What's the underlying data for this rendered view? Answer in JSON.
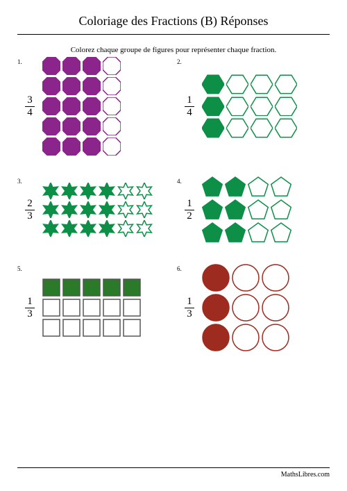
{
  "title": "Coloriage des Fractions (B) Réponses",
  "subtitle": "Colorez chaque groupe de figures pour représenter chaque fraction.",
  "footer_left": "",
  "footer_right": "MathsLibres.com",
  "problems": [
    {
      "index": "1.",
      "numerator": "3",
      "denominator": "4",
      "shape": "octagon",
      "rows": 5,
      "cols": 4,
      "fill_cols": 3,
      "size": 26,
      "fill_color": "#8b258b",
      "stroke_color": "#8b258b"
    },
    {
      "index": "2.",
      "numerator": "1",
      "denominator": "4",
      "shape": "hexagon",
      "rows": 3,
      "cols": 4,
      "fill_cols": 1,
      "size": 32,
      "fill_color": "#0d8f47",
      "stroke_color": "#0d8f47"
    },
    {
      "index": "3.",
      "numerator": "2",
      "denominator": "3",
      "shape": "star",
      "rows": 3,
      "cols": 6,
      "fill_cols": 4,
      "size": 24,
      "fill_color": "#0d8f47",
      "stroke_color": "#0d8f47"
    },
    {
      "index": "4.",
      "numerator": "1",
      "denominator": "2",
      "shape": "pentagon",
      "rows": 3,
      "cols": 4,
      "fill_cols": 2,
      "size": 30,
      "fill_color": "#0d8f47",
      "stroke_color": "#0d8f47"
    },
    {
      "index": "5.",
      "numerator": "1",
      "denominator": "3",
      "shape": "square",
      "rows": 3,
      "cols": 5,
      "fill_rows": 1,
      "size": 26,
      "fill_color": "#2a7a2a",
      "stroke_color": "#555555"
    },
    {
      "index": "6.",
      "numerator": "1",
      "denominator": "3",
      "shape": "circle",
      "rows": 3,
      "cols": 3,
      "fill_cols": 1,
      "size": 40,
      "fill_color": "#9e2b1f",
      "stroke_color": "#9e2b1f"
    }
  ]
}
